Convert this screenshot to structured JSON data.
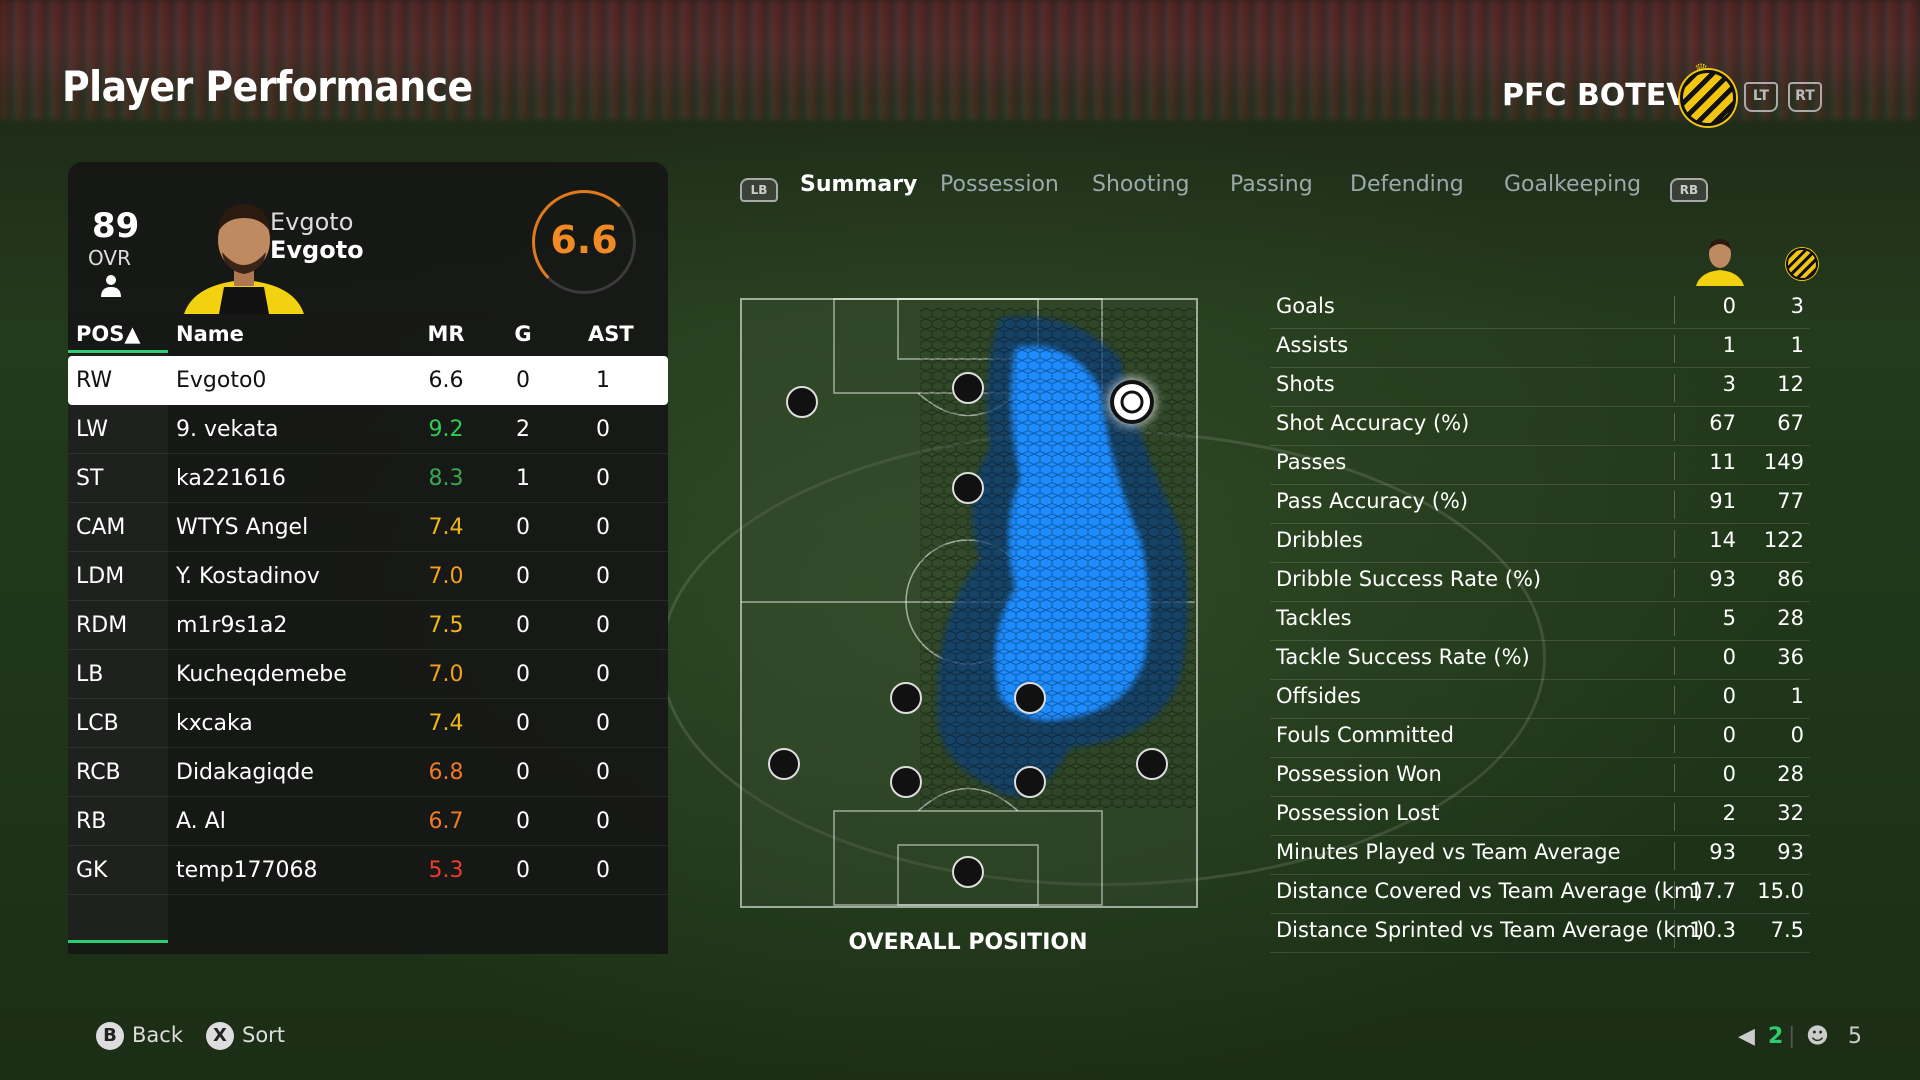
{
  "header": {
    "title": "Player Performance",
    "team_name": "PFC BOTEV",
    "lt": "LT",
    "rt": "RT"
  },
  "player_card": {
    "ovr": "89",
    "ovr_label": "OVR",
    "first_name": "Evgoto",
    "last_name": "Evgoto",
    "match_rating": "6.6"
  },
  "table": {
    "headers": {
      "pos": "POS▲",
      "name": "Name",
      "mr": "MR",
      "g": "G",
      "ast": "AST"
    },
    "rows": [
      {
        "pos": "RW",
        "name": "Evgoto0",
        "mr": "6.6",
        "g": "0",
        "ast": "1",
        "mr_color": "#111111"
      },
      {
        "pos": "LW",
        "name": "9. vekata",
        "mr": "9.2",
        "g": "2",
        "ast": "0",
        "mr_color": "#2ecc52"
      },
      {
        "pos": "ST",
        "name": "ka221616",
        "mr": "8.3",
        "g": "1",
        "ast": "0",
        "mr_color": "#3aa850"
      },
      {
        "pos": "CAM",
        "name": "WTYS Angel",
        "mr": "7.4",
        "g": "0",
        "ast": "0",
        "mr_color": "#f0b61c"
      },
      {
        "pos": "LDM",
        "name": "Y. Kostadinov",
        "mr": "7.0",
        "g": "0",
        "ast": "0",
        "mr_color": "#f0a01c"
      },
      {
        "pos": "RDM",
        "name": "m1r9s1a2",
        "mr": "7.5",
        "g": "0",
        "ast": "0",
        "mr_color": "#f0b61c"
      },
      {
        "pos": "LB",
        "name": "Kucheqdemebe",
        "mr": "7.0",
        "g": "0",
        "ast": "0",
        "mr_color": "#f0a01c"
      },
      {
        "pos": "LCB",
        "name": "kxcaka",
        "mr": "7.4",
        "g": "0",
        "ast": "0",
        "mr_color": "#f0b61c"
      },
      {
        "pos": "RCB",
        "name": "Didakagiqde",
        "mr": "6.8",
        "g": "0",
        "ast": "0",
        "mr_color": "#f07a24"
      },
      {
        "pos": "RB",
        "name": "A. Al",
        "mr": "6.7",
        "g": "0",
        "ast": "0",
        "mr_color": "#f07a24"
      },
      {
        "pos": "GK",
        "name": "temp177068",
        "mr": "5.3",
        "g": "0",
        "ast": "0",
        "mr_color": "#ee3b2b"
      }
    ]
  },
  "tabs": {
    "lb": "LB",
    "rb": "RB",
    "items": [
      "Summary",
      "Possession",
      "Shooting",
      "Passing",
      "Defending",
      "Goalkeeping"
    ],
    "active": "Summary"
  },
  "field": {
    "caption": "OVERALL POSITION"
  },
  "stats": [
    {
      "label": "Goals",
      "player": "0",
      "team": "3"
    },
    {
      "label": "Assists",
      "player": "1",
      "team": "1"
    },
    {
      "label": "Shots",
      "player": "3",
      "team": "12"
    },
    {
      "label": "Shot Accuracy (%)",
      "player": "67",
      "team": "67"
    },
    {
      "label": "Passes",
      "player": "11",
      "team": "149"
    },
    {
      "label": "Pass Accuracy (%)",
      "player": "91",
      "team": "77"
    },
    {
      "label": "Dribbles",
      "player": "14",
      "team": "122"
    },
    {
      "label": "Dribble Success Rate (%)",
      "player": "93",
      "team": "86"
    },
    {
      "label": "Tackles",
      "player": "5",
      "team": "28"
    },
    {
      "label": "Tackle Success Rate (%)",
      "player": "0",
      "team": "36"
    },
    {
      "label": "Offsides",
      "player": "0",
      "team": "1"
    },
    {
      "label": "Fouls Committed",
      "player": "0",
      "team": "0"
    },
    {
      "label": "Possession Won",
      "player": "0",
      "team": "28"
    },
    {
      "label": "Possession Lost",
      "player": "2",
      "team": "32"
    },
    {
      "label": "Minutes Played vs Team Average",
      "player": "93",
      "team": "93"
    },
    {
      "label": "Distance Covered vs Team Average (km)",
      "player": "17.7",
      "team": "15.0"
    },
    {
      "label": "Distance Sprinted vs Team Average (km)",
      "player": "10.3",
      "team": "7.5"
    }
  ],
  "footer": {
    "back_key": "B",
    "back_label": "Back",
    "sort_key": "X",
    "sort_label": "Sort",
    "count_a": "2",
    "count_b": "5"
  },
  "colors": {
    "accent_green": "#2ecc71",
    "rating_orange": "#f08a24",
    "heat_blue": "#1e90ff"
  }
}
